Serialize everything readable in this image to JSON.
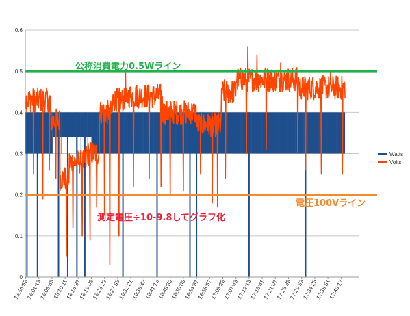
{
  "chart_data": {
    "type": "line",
    "title": "",
    "xlabel": "",
    "ylabel": "",
    "ylim": [
      0,
      0.6
    ],
    "yticks": [
      "0",
      "0.1",
      "0.2",
      "0.3",
      "0.4",
      "0.5",
      "0.6"
    ],
    "grid": "horizontal",
    "legend_position": "right",
    "x_tick_labels": [
      "15:56:53",
      "16:01:19",
      "16:05:45",
      "16:10:11",
      "16:14:37",
      "16:19:03",
      "16:23:29",
      "16:27:55",
      "16:32:21",
      "16:36:47",
      "16:41:13",
      "16:45:39",
      "16:50:05",
      "16:54:31",
      "16:58:57",
      "17:03:23",
      "17:07:49",
      "17:12:15",
      "17:16:41",
      "17:21:07",
      "17:25:33",
      "17:29:59",
      "17:34:25",
      "17:38:51",
      "17:43:17"
    ],
    "series": [
      {
        "name": "Watts",
        "color": "#1f4e8c",
        "description_values": {
          "segments": [
            {
              "x_start": 0,
              "x_end": 2.05,
              "low": 0.3,
              "high": 0.4
            },
            {
              "x_start": 2.05,
              "x_end": 5.0,
              "low": 0.34,
              "high": 0.4
            },
            {
              "x_start": 5.0,
              "x_end": 24.3,
              "low": 0.3,
              "high": 0.4
            }
          ],
          "dips_to_zero_at": [
            0.1,
            0.9,
            2.5,
            3.2,
            3.9,
            4.5,
            7.4,
            10.0,
            12.5,
            13.0,
            17.0,
            21.3
          ]
        }
      },
      {
        "name": "Volts",
        "color": "#ff4500",
        "segment_means": [
          {
            "x_start": 0.0,
            "x_end": 1.9,
            "mean": 0.43
          },
          {
            "x_start": 1.9,
            "x_end": 2.6,
            "mean": 0.38
          },
          {
            "x_start": 2.6,
            "x_end": 3.3,
            "mean": 0.24
          },
          {
            "x_start": 3.3,
            "x_end": 4.6,
            "mean": 0.28
          },
          {
            "x_start": 4.6,
            "x_end": 5.6,
            "mean": 0.3
          },
          {
            "x_start": 5.6,
            "x_end": 6.6,
            "mean": 0.4
          },
          {
            "x_start": 6.6,
            "x_end": 7.8,
            "mean": 0.43
          },
          {
            "x_start": 7.8,
            "x_end": 10.4,
            "mean": 0.44
          },
          {
            "x_start": 10.4,
            "x_end": 13.0,
            "mean": 0.4
          },
          {
            "x_start": 13.0,
            "x_end": 14.9,
            "mean": 0.37
          },
          {
            "x_start": 14.9,
            "x_end": 16.0,
            "mean": 0.45
          },
          {
            "x_start": 16.0,
            "x_end": 20.8,
            "mean": 0.48
          },
          {
            "x_start": 20.8,
            "x_end": 24.3,
            "mean": 0.46
          }
        ],
        "noise_amplitude": 0.03,
        "downward_spikes": [
          {
            "x": 0.6,
            "y": 0.25
          },
          {
            "x": 1.3,
            "y": 0.19
          },
          {
            "x": 1.8,
            "y": 0.26
          },
          {
            "x": 2.3,
            "y": 0.24
          },
          {
            "x": 3.1,
            "y": 0.05
          },
          {
            "x": 3.6,
            "y": 0.12
          },
          {
            "x": 4.3,
            "y": 0.1
          },
          {
            "x": 4.9,
            "y": 0.09
          },
          {
            "x": 5.4,
            "y": 0.17
          },
          {
            "x": 6.0,
            "y": 0.15
          },
          {
            "x": 6.4,
            "y": 0.03
          },
          {
            "x": 7.1,
            "y": 0.1
          },
          {
            "x": 8.2,
            "y": 0.22
          },
          {
            "x": 9.4,
            "y": 0.24
          },
          {
            "x": 10.3,
            "y": 0.22
          },
          {
            "x": 11.0,
            "y": 0.2
          },
          {
            "x": 12.0,
            "y": 0.21
          },
          {
            "x": 13.3,
            "y": 0.25
          },
          {
            "x": 14.2,
            "y": 0.18
          },
          {
            "x": 14.6,
            "y": 0.17
          },
          {
            "x": 15.2,
            "y": 0.24
          },
          {
            "x": 16.8,
            "y": 0.3
          },
          {
            "x": 18.3,
            "y": 0.31
          },
          {
            "x": 20.7,
            "y": 0.3
          },
          {
            "x": 21.3,
            "y": 0.26
          },
          {
            "x": 22.5,
            "y": 0.25
          },
          {
            "x": 24.1,
            "y": 0.25
          }
        ],
        "upward_spikes": [
          {
            "x": 7.6,
            "y": 0.5
          },
          {
            "x": 16.1,
            "y": 0.5
          },
          {
            "x": 16.9,
            "y": 0.56
          },
          {
            "x": 17.6,
            "y": 0.54
          },
          {
            "x": 19.4,
            "y": 0.52
          },
          {
            "x": 23.2,
            "y": 0.5
          }
        ]
      }
    ],
    "reference_lines": [
      {
        "y": 0.5,
        "color": "#22b24c",
        "label": "公称消費電力0.5Wライン",
        "label_color": "#22b24c"
      },
      {
        "y": 0.2,
        "color": "#f28a30",
        "label": "電圧100Vライン",
        "label_color": "#f28a30"
      }
    ],
    "annotations": [
      {
        "text": "測定電圧÷10-9.8してグラフ化",
        "color": "#e8243c"
      }
    ],
    "legend": [
      {
        "label": "Watts",
        "color": "#1f4e8c"
      },
      {
        "label": "Volts",
        "color": "#ff4500"
      }
    ]
  }
}
